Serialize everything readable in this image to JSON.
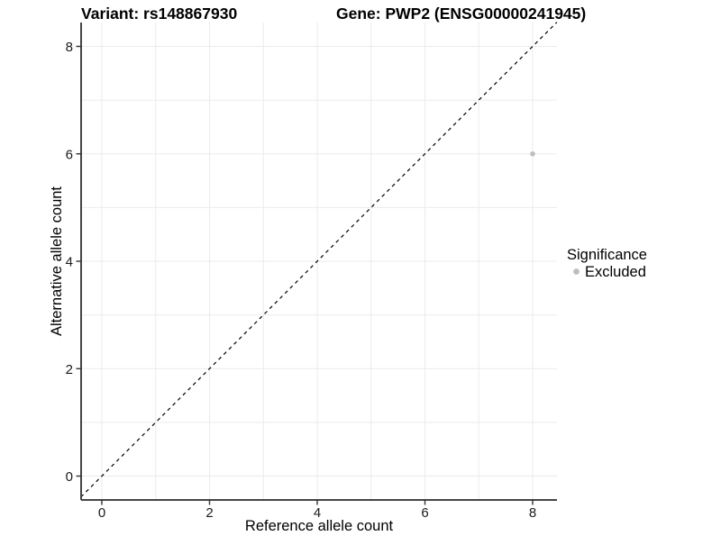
{
  "titles": {
    "variant": "Variant: rs148867930",
    "gene": "Gene: PWP2 (ENSG00000241945)"
  },
  "chart_data": {
    "type": "scatter",
    "xlabel": "Reference allele count",
    "ylabel": "Alternative allele count",
    "xlim": [
      -0.39,
      8.45
    ],
    "ylim": [
      -0.45,
      8.45
    ],
    "x_ticks": [
      0,
      2,
      4,
      6,
      8
    ],
    "y_ticks": [
      0,
      2,
      4,
      6,
      8
    ],
    "x_grid": [
      0,
      1,
      2,
      3,
      4,
      5,
      6,
      7,
      8
    ],
    "y_grid": [
      0,
      1,
      2,
      3,
      4,
      5,
      6,
      7,
      8
    ],
    "grid": "on",
    "points": [
      {
        "x": 8,
        "y": 6,
        "significance": "Excluded",
        "color": "#bebebe"
      }
    ],
    "reference_line": {
      "kind": "identity",
      "slope": 1,
      "intercept": 0,
      "style": "dashed",
      "color": "#000000"
    },
    "legend": {
      "title": "Significance",
      "position": "right",
      "entries": [
        {
          "label": "Excluded",
          "color": "#bebebe",
          "marker": "circle"
        }
      ]
    }
  },
  "colors": {
    "background": "#ffffff",
    "gridline": "#ebebeb",
    "axis_line": "#454545",
    "point": "#bebebe",
    "text": "#000000"
  }
}
